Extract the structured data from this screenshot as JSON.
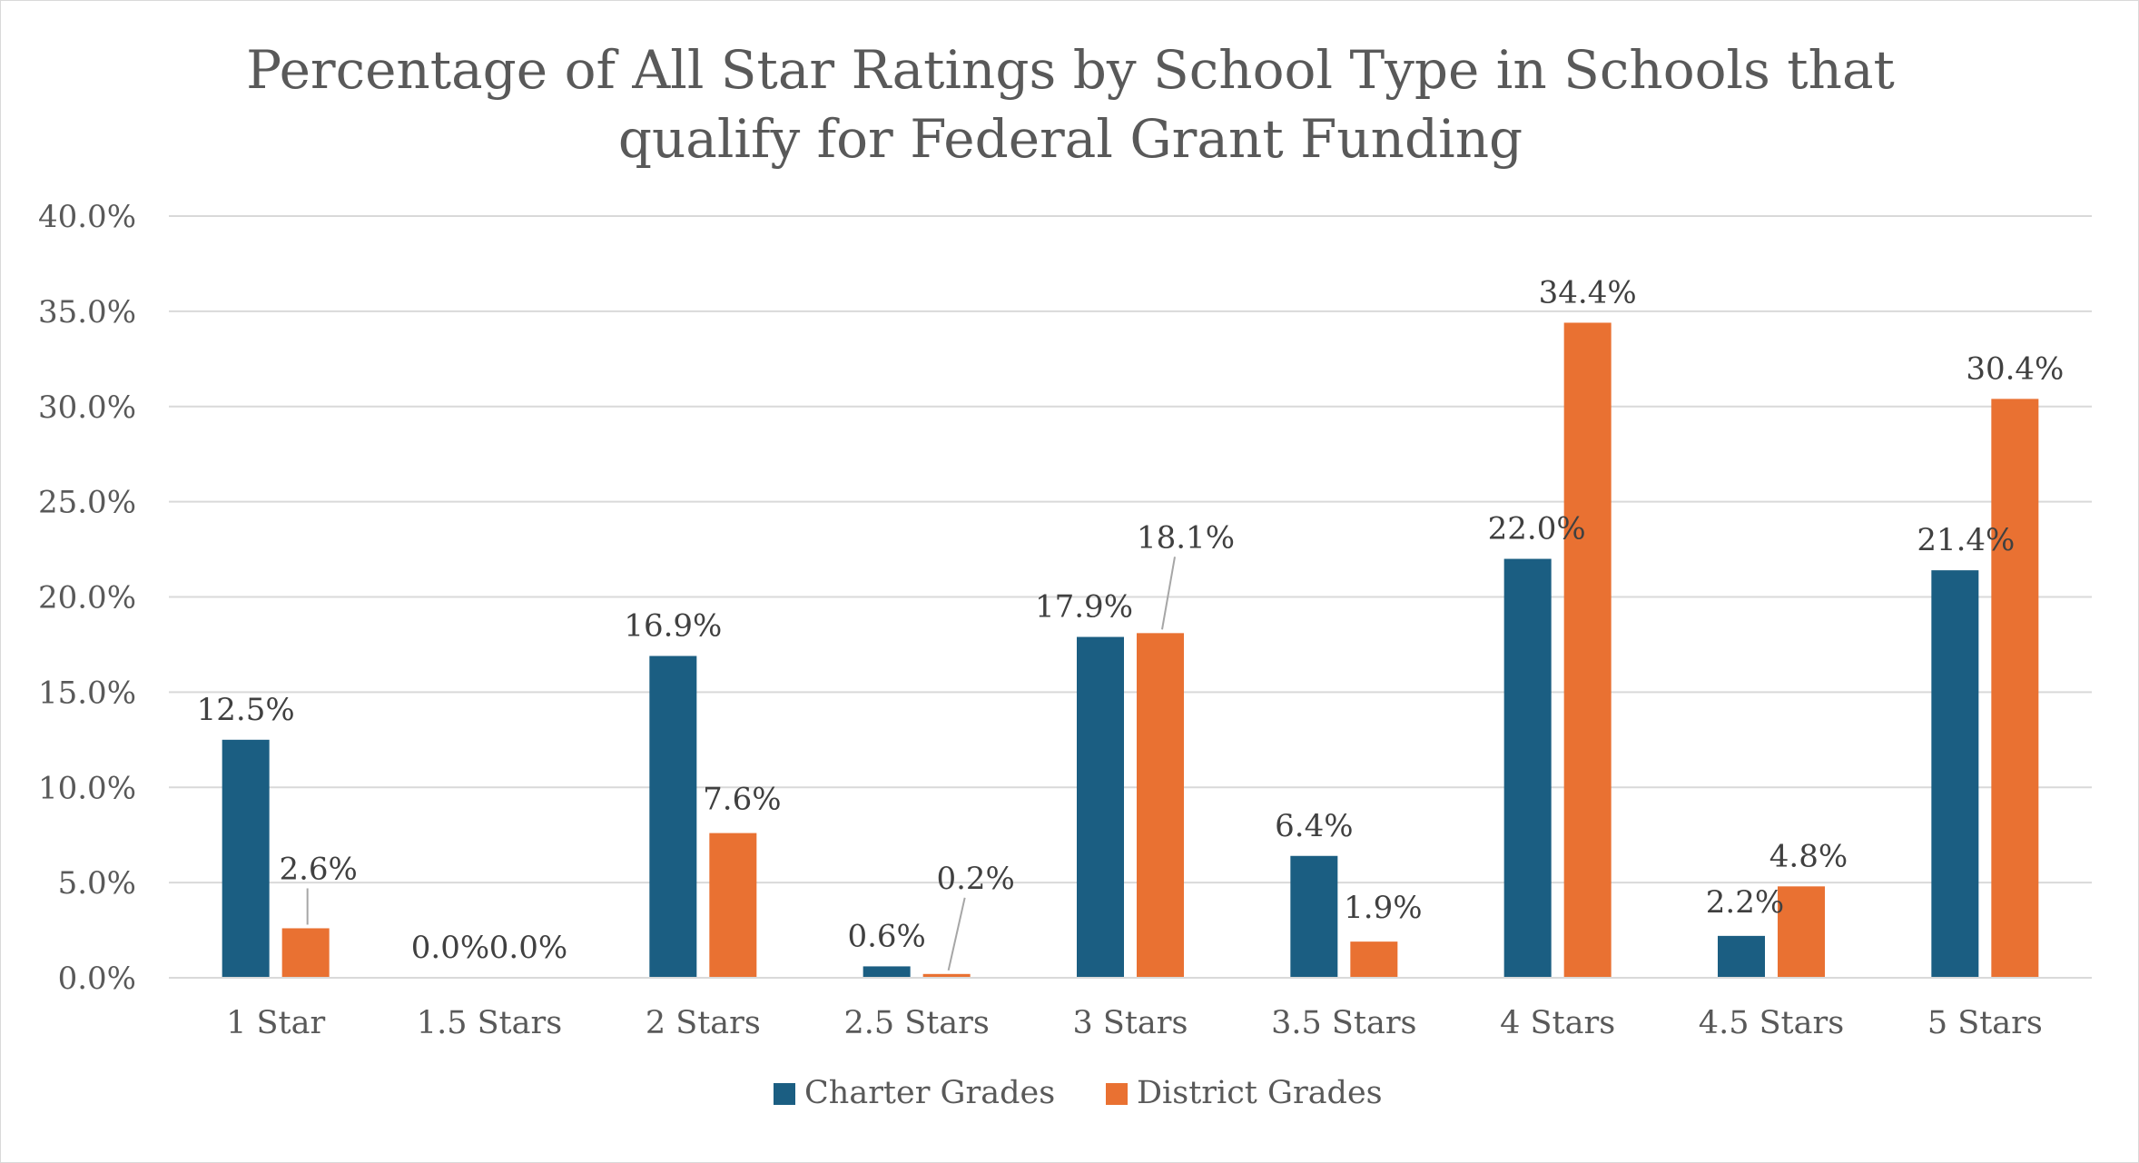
{
  "chart_data": {
    "type": "bar",
    "title_line1": "Percentage of All Star Ratings by School Type in Schools that",
    "title_line2": "qualify for Federal Grant Funding",
    "categories": [
      "1 Star",
      "1.5 Stars",
      "2 Stars",
      "2.5 Stars",
      "3 Stars",
      "3.5 Stars",
      "4 Stars",
      "4.5 Stars",
      "5 Stars"
    ],
    "series": [
      {
        "name": "Charter Grades",
        "color": "#1b5e82",
        "values": [
          12.5,
          0.0,
          16.9,
          0.6,
          17.9,
          6.4,
          22.0,
          2.2,
          21.4
        ],
        "labels": [
          "12.5%",
          "0.0%",
          "16.9%",
          "0.6%",
          "17.9%",
          "6.4%",
          "22.0%",
          "2.2%",
          "21.4%"
        ]
      },
      {
        "name": "District Grades",
        "color": "#e97132",
        "values": [
          2.6,
          0.0,
          7.6,
          0.2,
          18.1,
          1.9,
          34.4,
          4.8,
          30.4
        ],
        "labels": [
          "2.6%",
          "0.0%",
          "7.6%",
          "0.2%",
          "18.1%",
          "1.9%",
          "34.4%",
          "4.8%",
          "30.4%"
        ]
      }
    ],
    "yticks": [
      "0.0%",
      "5.0%",
      "10.0%",
      "15.0%",
      "20.0%",
      "25.0%",
      "30.0%",
      "35.0%",
      "40.0%"
    ],
    "ylim": [
      0,
      40
    ],
    "grid": true,
    "legend_position": "bottom",
    "gridline_color": "#d9d9d9"
  }
}
